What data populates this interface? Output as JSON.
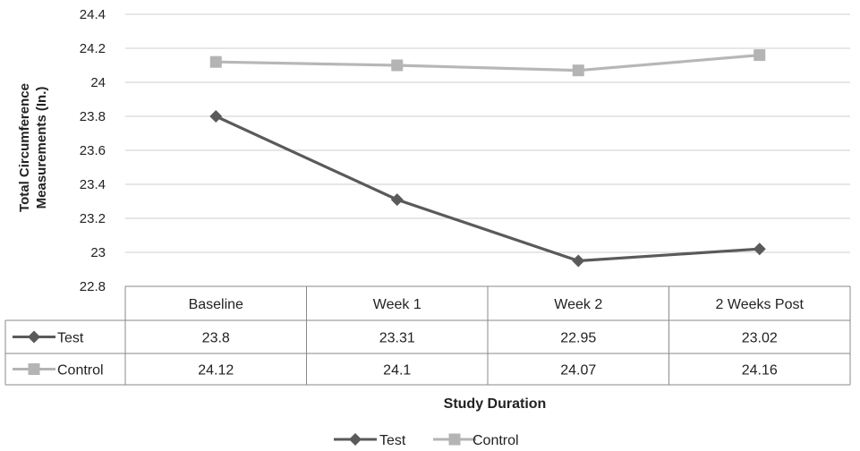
{
  "chart_data": {
    "type": "line",
    "categories": [
      "Baseline",
      "Week 1",
      "Week 2",
      "2 Weeks Post"
    ],
    "series": [
      {
        "name": "Test",
        "values": [
          23.8,
          23.31,
          22.95,
          23.02
        ],
        "table_values": [
          "23.8",
          "23.31",
          "22.95",
          "23.02"
        ],
        "color": "#5a5a5a",
        "marker": "diamond"
      },
      {
        "name": "Control",
        "values": [
          24.12,
          24.1,
          24.07,
          24.16
        ],
        "table_values": [
          "24.12",
          "24.1",
          "24.07",
          "24.16"
        ],
        "color": "#b4b4b4",
        "marker": "square"
      }
    ],
    "y_ticks": [
      "22.8",
      "23",
      "23.2",
      "23.4",
      "23.6",
      "23.8",
      "24",
      "24.2",
      "24.4"
    ],
    "ylim": [
      22.8,
      24.4
    ],
    "ylabel_lines": [
      "Total Circumference",
      "Measurements (In.)"
    ],
    "xlabel": "Study Duration",
    "grid": true,
    "data_table": true,
    "legend_position": "bottom"
  }
}
